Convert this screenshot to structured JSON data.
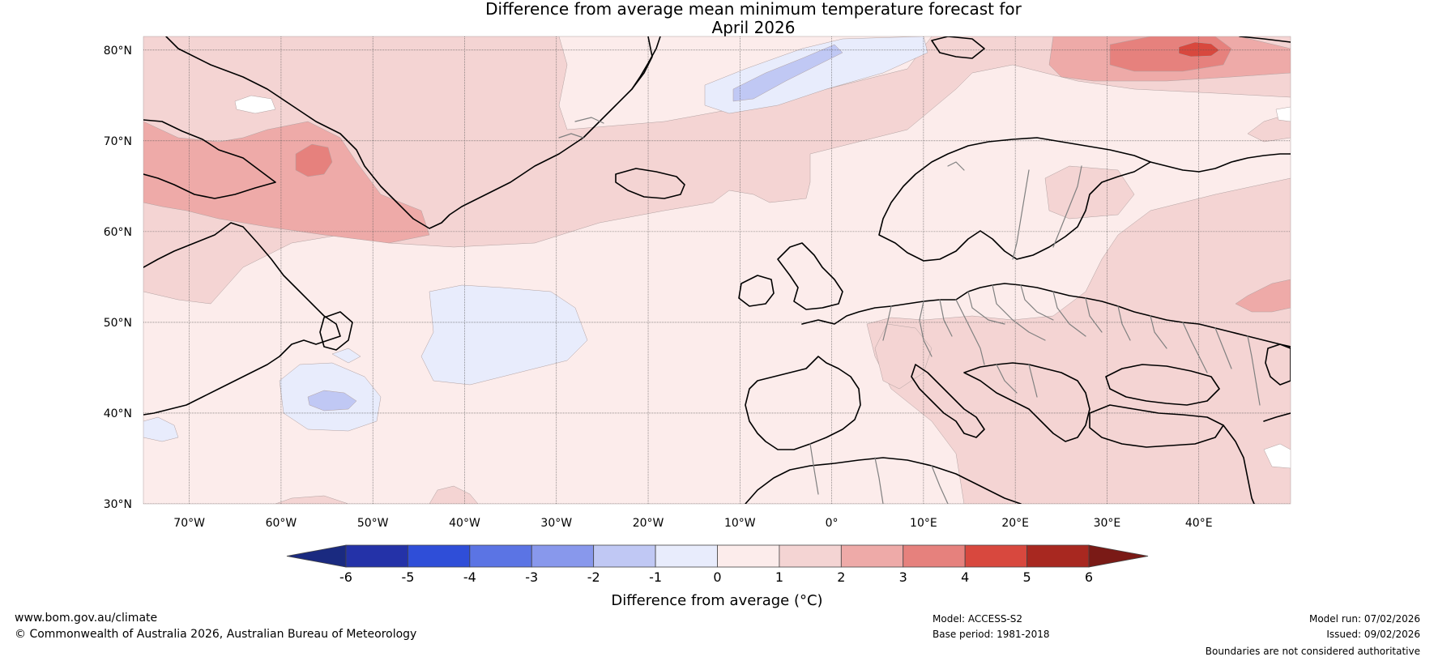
{
  "title": {
    "line1": "Difference from average mean minimum temperature forecast for",
    "line2": "April 2026"
  },
  "map": {
    "lat_labels": [
      "80°N",
      "70°N",
      "60°N",
      "50°N",
      "40°N",
      "30°N"
    ],
    "lon_labels": [
      "70°W",
      "60°W",
      "50°W",
      "40°W",
      "30°W",
      "20°W",
      "10°W",
      "0°",
      "10°E",
      "20°E",
      "30°E",
      "40°E"
    ],
    "ocean_anomaly_class": "0 to 1",
    "colors": {
      "below_-6": "#1a2a80",
      "-6_-5": "#2432a8",
      "-5_-4": "#2f4ed8",
      "-4_-3": "#5b74e4",
      "-3_-2": "#8898ec",
      "-2_-1": "#c0c8f4",
      "-1_0": "#e8ecfc",
      "0_1": "#fceceb",
      "1_2": "#f4d4d3",
      "2_3": "#eeaaa8",
      "3_4": "#e6817d",
      "4_5": "#d8483e",
      "5_6": "#a82820",
      "above_6": "#7a1a16"
    },
    "coastline_color": "#000000",
    "border_color": "#808080"
  },
  "colorbar": {
    "ticks": [
      "-6",
      "-5",
      "-4",
      "-3",
      "-2",
      "-1",
      "0",
      "1",
      "2",
      "3",
      "4",
      "5",
      "6"
    ],
    "label": "Difference from average (°C)"
  },
  "footer": {
    "website": "www.bom.gov.au/climate",
    "copyright": "© Commonwealth of Australia 2026, Australian Bureau of Meteorology",
    "model": "Model: ACCESS-S2",
    "base_period": "Base period: 1981-2018",
    "model_run": "Model run: 07/02/2026",
    "issued": "Issued: 09/02/2026",
    "disclaimer": "Boundaries are not considered authoritative"
  }
}
